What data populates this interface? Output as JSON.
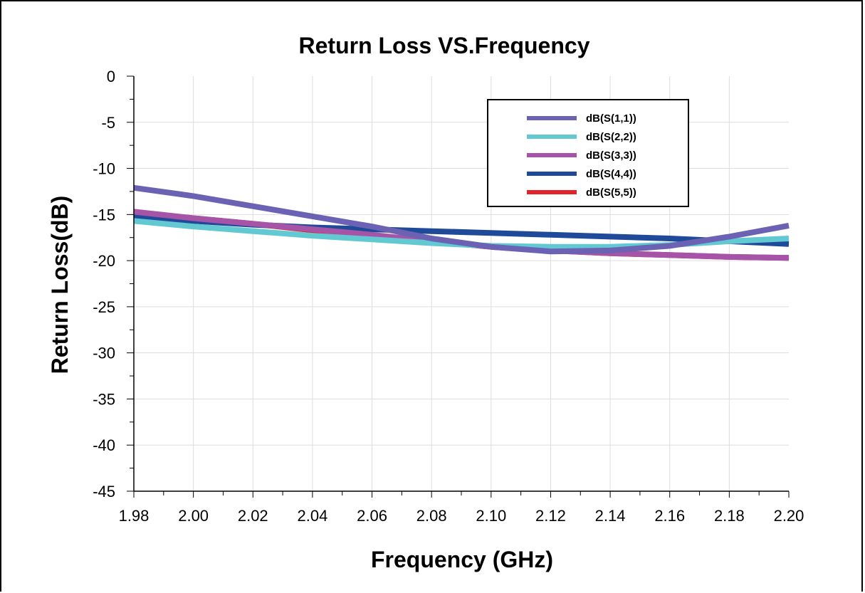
{
  "chart_data": {
    "type": "line",
    "title": "Return Loss VS.Frequency",
    "xlabel": "Frequency (GHz)",
    "ylabel": "Return Loss(dB)",
    "xlim": [
      1.98,
      2.2
    ],
    "ylim": [
      -45,
      0
    ],
    "xticks": [
      "1.98",
      "2.00",
      "2.02",
      "2.04",
      "2.06",
      "2.08",
      "2.10",
      "2.12",
      "2.14",
      "2.16",
      "2.18",
      "2.20"
    ],
    "yticks": [
      "0",
      "-5",
      "-10",
      "-15",
      "-20",
      "-25",
      "-30",
      "-35",
      "-40",
      "-45"
    ],
    "grid": true,
    "legend_position": "top-right",
    "series": [
      {
        "name": "dB(S(5,5))",
        "color": "#e0242a",
        "x": [
          1.98,
          2.0,
          2.02,
          2.04,
          2.06,
          2.08,
          2.1,
          2.12,
          2.14,
          2.16,
          2.18,
          2.2
        ],
        "values": [
          -14.8,
          -15.4,
          -16.0,
          -16.7,
          -17.3,
          -17.9,
          -18.5,
          -18.9,
          -19.2,
          -19.4,
          -19.6,
          -19.7
        ]
      },
      {
        "name": "dB(S(4,4))",
        "color": "#1f4a9a",
        "x": [
          1.98,
          2.0,
          2.02,
          2.04,
          2.06,
          2.08,
          2.1,
          2.12,
          2.14,
          2.16,
          2.18,
          2.2
        ],
        "values": [
          -15.2,
          -15.7,
          -16.1,
          -16.4,
          -16.6,
          -16.8,
          -17.0,
          -17.2,
          -17.4,
          -17.6,
          -17.9,
          -18.2
        ]
      },
      {
        "name": "dB(S(3,3))",
        "color": "#a654a8",
        "x": [
          1.98,
          2.0,
          2.02,
          2.04,
          2.06,
          2.08,
          2.1,
          2.12,
          2.14,
          2.16,
          2.18,
          2.2
        ],
        "values": [
          -14.7,
          -15.4,
          -16.0,
          -16.6,
          -17.2,
          -17.9,
          -18.5,
          -18.9,
          -19.2,
          -19.4,
          -19.6,
          -19.7
        ]
      },
      {
        "name": "dB(S(2,2))",
        "color": "#62c8d2",
        "x": [
          1.98,
          2.0,
          2.02,
          2.04,
          2.06,
          2.08,
          2.1,
          2.12,
          2.14,
          2.16,
          2.18,
          2.2
        ],
        "values": [
          -15.7,
          -16.3,
          -16.8,
          -17.3,
          -17.7,
          -18.1,
          -18.4,
          -18.5,
          -18.5,
          -18.3,
          -17.9,
          -17.6
        ]
      },
      {
        "name": "dB(S(1,1))",
        "color": "#6b62b4",
        "x": [
          1.98,
          2.0,
          2.02,
          2.04,
          2.06,
          2.08,
          2.1,
          2.12,
          2.14,
          2.16,
          2.18,
          2.2
        ],
        "values": [
          -12.1,
          -13.0,
          -14.1,
          -15.2,
          -16.3,
          -17.6,
          -18.5,
          -19.0,
          -18.9,
          -18.4,
          -17.4,
          -16.2
        ]
      }
    ],
    "legend_order": [
      "dB(S(1,1))",
      "dB(S(2,2))",
      "dB(S(3,3))",
      "dB(S(4,4))",
      "dB(S(5,5))"
    ]
  },
  "colors": {
    "grid": "#dddddd",
    "axis": "#000000",
    "background": "#ffffff"
  }
}
